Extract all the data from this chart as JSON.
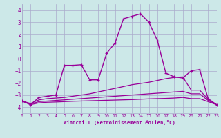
{
  "xlabel": "Windchill (Refroidissement éolien,°C)",
  "background_color": "#cce8e8",
  "grid_color": "#aaaacc",
  "line_color": "#990099",
  "xlim": [
    0,
    23
  ],
  "ylim": [
    -4.5,
    4.5
  ],
  "yticks": [
    -4,
    -3,
    -2,
    -1,
    0,
    1,
    2,
    3,
    4
  ],
  "xticks": [
    0,
    1,
    2,
    3,
    4,
    5,
    6,
    7,
    8,
    9,
    10,
    11,
    12,
    13,
    14,
    15,
    16,
    17,
    18,
    19,
    20,
    21,
    22,
    23
  ],
  "series1_x": [
    0,
    1,
    2,
    3,
    4,
    5,
    6,
    7,
    8,
    9,
    10,
    11,
    12,
    13,
    14,
    15,
    16,
    17,
    18,
    19,
    20,
    21,
    22,
    23
  ],
  "series1_y": [
    -3.5,
    -3.8,
    -3.2,
    -3.1,
    -3.0,
    -0.55,
    -0.55,
    -0.5,
    -1.75,
    -1.75,
    0.45,
    1.3,
    3.3,
    3.5,
    3.7,
    3.0,
    1.5,
    -1.2,
    -1.5,
    -1.6,
    -1.0,
    -0.9,
    -3.3,
    -3.8
  ],
  "series2_x": [
    0,
    1,
    2,
    3,
    4,
    5,
    6,
    7,
    8,
    9,
    10,
    11,
    12,
    13,
    14,
    15,
    16,
    17,
    18,
    19,
    20,
    21,
    22,
    23
  ],
  "series2_y": [
    -3.5,
    -3.7,
    -3.4,
    -3.3,
    -3.25,
    -3.2,
    -3.1,
    -3.0,
    -2.9,
    -2.75,
    -2.6,
    -2.45,
    -2.3,
    -2.15,
    -2.05,
    -1.95,
    -1.8,
    -1.65,
    -1.55,
    -1.5,
    -2.6,
    -2.6,
    -3.35,
    -3.8
  ],
  "series3_x": [
    0,
    1,
    2,
    3,
    4,
    5,
    6,
    7,
    8,
    9,
    10,
    11,
    12,
    13,
    14,
    15,
    16,
    17,
    18,
    19,
    20,
    21,
    22,
    23
  ],
  "series3_y": [
    -3.5,
    -3.75,
    -3.55,
    -3.5,
    -3.45,
    -3.4,
    -3.35,
    -3.3,
    -3.25,
    -3.2,
    -3.15,
    -3.1,
    -3.05,
    -3.0,
    -2.95,
    -2.9,
    -2.85,
    -2.8,
    -2.75,
    -2.7,
    -2.9,
    -2.9,
    -3.45,
    -3.8
  ],
  "series4_x": [
    0,
    1,
    2,
    3,
    4,
    5,
    6,
    7,
    8,
    9,
    10,
    11,
    12,
    13,
    14,
    15,
    16,
    17,
    18,
    19,
    20,
    21,
    22,
    23
  ],
  "series4_y": [
    -3.5,
    -3.8,
    -3.65,
    -3.6,
    -3.58,
    -3.55,
    -3.52,
    -3.5,
    -3.48,
    -3.46,
    -3.44,
    -3.42,
    -3.4,
    -3.38,
    -3.35,
    -3.32,
    -3.3,
    -3.28,
    -3.25,
    -3.2,
    -3.3,
    -3.3,
    -3.55,
    -3.8
  ]
}
